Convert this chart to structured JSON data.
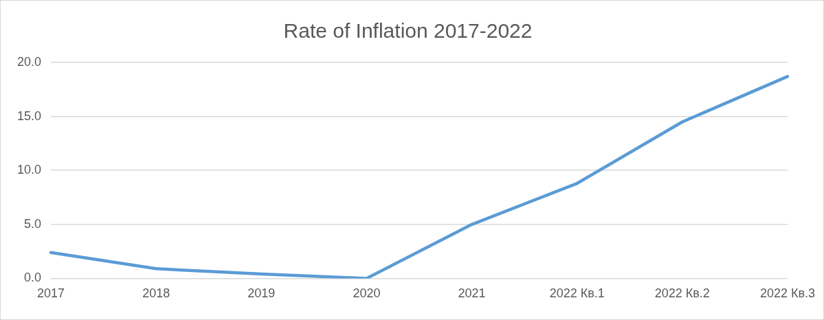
{
  "chart_data": {
    "type": "line",
    "title": "Rate of Inflation 2017-2022",
    "categories": [
      "2017",
      "2018",
      "2019",
      "2020",
      "2021",
      "2022 Кв.1",
      "2022 Кв.2",
      "2022 Кв.3"
    ],
    "series": [
      {
        "color": "#5b9bd5",
        "values": [
          2.4,
          0.9,
          0.4,
          0.0,
          5.0,
          8.8,
          14.5,
          18.7
        ]
      }
    ],
    "ylim": [
      0,
      20
    ],
    "yticks": [
      {
        "value": 0,
        "label": "0.0"
      },
      {
        "value": 5,
        "label": "5.0"
      },
      {
        "value": 10,
        "label": "10.0"
      },
      {
        "value": 15,
        "label": "15.0"
      },
      {
        "value": 20,
        "label": "20.0"
      }
    ],
    "grid": "y",
    "legend": false,
    "marker": "none",
    "line_style": "solid"
  }
}
